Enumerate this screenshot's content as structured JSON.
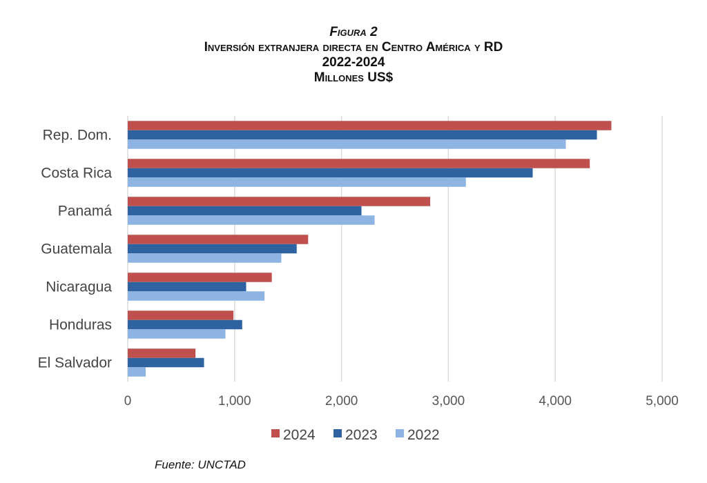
{
  "chart_data": {
    "type": "bar",
    "orientation": "horizontal",
    "title_lines": [
      "Figura 2",
      "Inversión extranjera directa en Centro América y RD",
      "2022-2024",
      "Millones US$"
    ],
    "categories": [
      "Rep. Dom.",
      "Costa Rica",
      "Panamá",
      "Guatemala",
      "Nicaragua",
      "Honduras",
      "El Salvador"
    ],
    "series": [
      {
        "name": "2024",
        "color": "#C0504D",
        "values": [
          4525,
          4323,
          2830,
          1688,
          1348,
          989,
          634
        ]
      },
      {
        "name": "2023",
        "color": "#2E62A0",
        "values": [
          4390,
          3789,
          2187,
          1581,
          1108,
          1071,
          714
        ]
      },
      {
        "name": "2022",
        "color": "#8DB4E2",
        "values": [
          4099,
          3164,
          2310,
          1437,
          1280,
          914,
          168
        ]
      }
    ],
    "xlim": [
      0,
      5000
    ],
    "xticks": [
      "0",
      "1,000",
      "2,000",
      "3,000",
      "4,000",
      "5,000"
    ],
    "grid": true,
    "legend": "bottom",
    "source": "Fuente: UNCTAD"
  }
}
